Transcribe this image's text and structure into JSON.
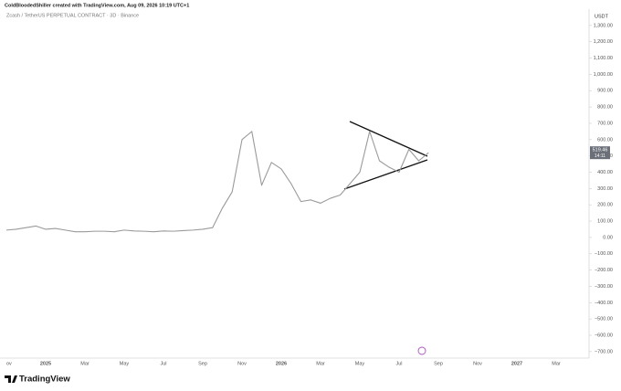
{
  "chart_data": {
    "type": "line",
    "credit": "ColdBloodedShiller created with TradingView.com, Aug 09, 2026 10:19 UTC+1",
    "title": "Zcash / TetherUS PERPETUAL CONTRACT · 3D · Binance",
    "y_unit": "USDT",
    "brand": "TradingView",
    "categories": [
      "ov",
      null,
      null,
      null,
      "2025",
      null,
      null,
      null,
      "Mar",
      null,
      null,
      null,
      "May",
      null,
      null,
      null,
      "Jul",
      null,
      null,
      null,
      "Sep",
      null,
      null,
      null,
      "Nov",
      null,
      null,
      null,
      "2026",
      null,
      null,
      null,
      "Mar",
      null,
      null,
      null,
      "May",
      null,
      null,
      null,
      "Jul",
      null,
      null,
      null,
      "Sep",
      null,
      null,
      null,
      "Nov",
      null,
      null,
      null,
      "2027",
      null,
      null,
      null,
      "Mar",
      null,
      null,
      null
    ],
    "series": [
      {
        "name": "Zcash / TetherUS",
        "color": "#9a9a9a",
        "values": [
          45,
          50,
          60,
          70,
          50,
          55,
          45,
          35,
          35,
          38,
          38,
          35,
          45,
          40,
          38,
          35,
          40,
          38,
          42,
          45,
          50,
          60,
          180,
          280,
          600,
          650,
          320,
          460,
          420,
          330,
          220,
          230,
          210,
          240,
          260,
          330,
          400,
          650,
          470,
          430,
          400,
          540,
          470,
          519.46,
          null,
          null,
          null,
          null,
          null,
          null,
          null,
          null,
          null,
          null,
          null,
          null,
          null,
          null,
          null,
          null
        ]
      }
    ],
    "last_price": 519.46,
    "countdown": "14:11",
    "ylim": [
      -740,
      1400
    ],
    "yticks": [
      {
        "value": 1300,
        "label": "1,300.00"
      },
      {
        "value": 1200,
        "label": "1,200.00"
      },
      {
        "value": 1100,
        "label": "1,100.00"
      },
      {
        "value": 1000,
        "label": "1,000.00"
      },
      {
        "value": 900,
        "label": "900.00"
      },
      {
        "value": 800,
        "label": "800.00"
      },
      {
        "value": 700,
        "label": "700.00"
      },
      {
        "value": 600,
        "label": "600.00"
      },
      {
        "value": 500,
        "label": "500.00"
      },
      {
        "value": 400,
        "label": "400.00"
      },
      {
        "value": 300,
        "label": "300.00"
      },
      {
        "value": 200,
        "label": "200.00"
      },
      {
        "value": 100,
        "label": "100.00"
      },
      {
        "value": 0,
        "label": "0.00"
      },
      {
        "value": -100,
        "label": "−100.00"
      },
      {
        "value": -200,
        "label": "−200.00"
      },
      {
        "value": -300,
        "label": "−300.00"
      },
      {
        "value": -400,
        "label": "−400.00"
      },
      {
        "value": -500,
        "label": "−500.00"
      },
      {
        "value": -600,
        "label": "−600.00"
      },
      {
        "value": -700,
        "label": "−700.00"
      }
    ],
    "grid": false
  }
}
